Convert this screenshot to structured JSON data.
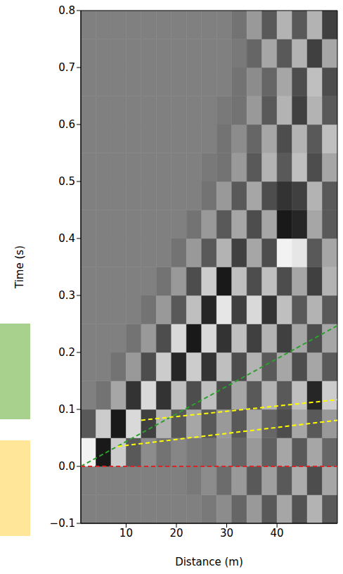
{
  "chart_data": {
    "type": "heatmap_with_lines",
    "x_label": "Distance (m)",
    "y_label": "Time (s)",
    "xlim": [
      1,
      52
    ],
    "xticks": [
      10,
      20,
      30,
      40
    ],
    "ylim": [
      -0.1,
      0.8
    ],
    "yticks": [
      {
        "value": -0.1,
        "label": "−0.1"
      },
      {
        "value": 0,
        "label": "0.0"
      },
      0.1,
      0.2,
      0.3,
      0.4,
      0.5,
      0.6,
      0.7,
      0.8
    ],
    "grid": false,
    "heatmap": {
      "x_edges": [
        1,
        4,
        7,
        10,
        13,
        16,
        19,
        22,
        25,
        28,
        31,
        34,
        37,
        40,
        43,
        46,
        49,
        52
      ],
      "y_edges": [
        -0.1,
        -0.05,
        0,
        0.05,
        0.1,
        0.15,
        0.2,
        0.25,
        0.3,
        0.35,
        0.4,
        0.45,
        0.5,
        0.55,
        0.6,
        0.65,
        0.7,
        0.75,
        0.8
      ],
      "vlim": [
        -1,
        1
      ],
      "cells": [
        [
          0,
          0,
          0,
          0,
          0,
          0,
          0,
          0,
          0.05,
          -0.1,
          0.2,
          -0.2,
          0.3,
          -0.3,
          0.35,
          -0.4,
          0.3
        ],
        [
          0,
          0,
          0,
          0,
          0,
          0,
          0,
          0.05,
          -0.1,
          0.15,
          -0.2,
          0.3,
          -0.25,
          0.3,
          -0.35,
          0.4,
          -0.3
        ],
        [
          -0.9,
          0.8,
          -0.6,
          0.3,
          -0.1,
          0.1,
          -0.05,
          0.05,
          0.1,
          -0.15,
          0.2,
          -0.2,
          0.25,
          -0.3,
          0.3,
          -0.3,
          0.2
        ],
        [
          0.3,
          -0.6,
          0.8,
          -0.7,
          0.5,
          -0.4,
          0.3,
          -0.3,
          0.3,
          -0.2,
          0.3,
          -0.3,
          0.2,
          0.4,
          -0.3,
          0.3,
          -0.2
        ],
        [
          0,
          0.1,
          -0.3,
          0.6,
          -0.7,
          0.6,
          -0.5,
          0.4,
          -0.5,
          0.4,
          -0.3,
          0.3,
          -0.4,
          0.3,
          -0.5,
          0.7,
          -0.6
        ],
        [
          0,
          0,
          0.1,
          -0.2,
          0.4,
          -0.6,
          0.7,
          -0.6,
          0.6,
          -0.5,
          0.4,
          -0.4,
          0.3,
          -0.3,
          0.4,
          -0.3,
          0.3
        ],
        [
          0,
          0,
          0,
          0.1,
          -0.2,
          0.4,
          -0.7,
          0.8,
          -0.7,
          0.6,
          -0.5,
          0.5,
          -0.4,
          0.5,
          -0.3,
          0.4,
          -0.3
        ],
        [
          0,
          0,
          0,
          0,
          0.1,
          -0.2,
          0.3,
          -0.5,
          0.7,
          -0.8,
          0.5,
          -0.7,
          0.6,
          -0.5,
          0.3,
          -0.4,
          0.3
        ],
        [
          0,
          0,
          0,
          0,
          0,
          0.1,
          -0.2,
          0.4,
          -0.6,
          0.8,
          -0.5,
          0.4,
          -0.5,
          0.4,
          -0.3,
          0.5,
          -0.4
        ],
        [
          0,
          0,
          0,
          0,
          0,
          0,
          0.1,
          -0.2,
          0.3,
          -0.4,
          0.5,
          -0.3,
          0.4,
          -0.9,
          -0.8,
          0.3,
          -0.3
        ],
        [
          0,
          0,
          0,
          0,
          0,
          0,
          0,
          0.1,
          -0.2,
          0.3,
          -0.3,
          0.4,
          -0.3,
          0.8,
          0.7,
          -0.3,
          0.3
        ],
        [
          0,
          0,
          0,
          0,
          0,
          0,
          0,
          0,
          0.1,
          -0.2,
          0.3,
          -0.3,
          0.4,
          0.6,
          0.5,
          -0.4,
          0.3
        ],
        [
          0,
          0,
          0,
          0,
          0,
          0,
          0,
          0,
          0.05,
          0.1,
          -0.2,
          0.3,
          -0.4,
          0.3,
          -0.5,
          0.4,
          -0.3
        ],
        [
          0,
          0,
          0,
          0,
          0,
          0,
          0,
          0,
          0,
          0.1,
          -0.1,
          0.2,
          -0.3,
          0.4,
          -0.4,
          0.3,
          -0.5
        ],
        [
          0,
          0,
          0,
          0,
          0,
          0,
          0,
          0,
          0,
          0.05,
          0.1,
          -0.2,
          0.3,
          -0.4,
          0.5,
          -0.4,
          0.3
        ],
        [
          0,
          0,
          0,
          0,
          0,
          0,
          0,
          0,
          0,
          0,
          0.1,
          -0.1,
          0.2,
          -0.3,
          0.4,
          -0.5,
          0.4
        ],
        [
          0,
          0,
          0,
          0,
          0,
          0,
          0,
          0,
          0,
          0,
          0.05,
          0.2,
          -0.3,
          0.3,
          -0.4,
          0.5,
          -0.3
        ],
        [
          0,
          0,
          0,
          0,
          0,
          0,
          0,
          0,
          0,
          0,
          0.1,
          -0.2,
          0.3,
          -0.4,
          0.3,
          -0.4,
          0.5
        ]
      ]
    },
    "series": [
      {
        "color": "#2ca02c",
        "line_style": "dashed",
        "x": [
          1,
          52
        ],
        "values": [
          0,
          0.247
        ]
      },
      {
        "color": "#ffff00",
        "line_style": "dashed",
        "x": [
          13,
          52
        ],
        "values": [
          0.081,
          0.117
        ]
      },
      {
        "color": "#ffff00",
        "line_style": "dashed",
        "x": [
          8.3,
          52
        ],
        "values": [
          0.035,
          0.081
        ]
      },
      {
        "color": "#d62728",
        "line_style": "dashed",
        "x": [
          1,
          52
        ],
        "values": [
          0,
          0
        ]
      }
    ]
  }
}
